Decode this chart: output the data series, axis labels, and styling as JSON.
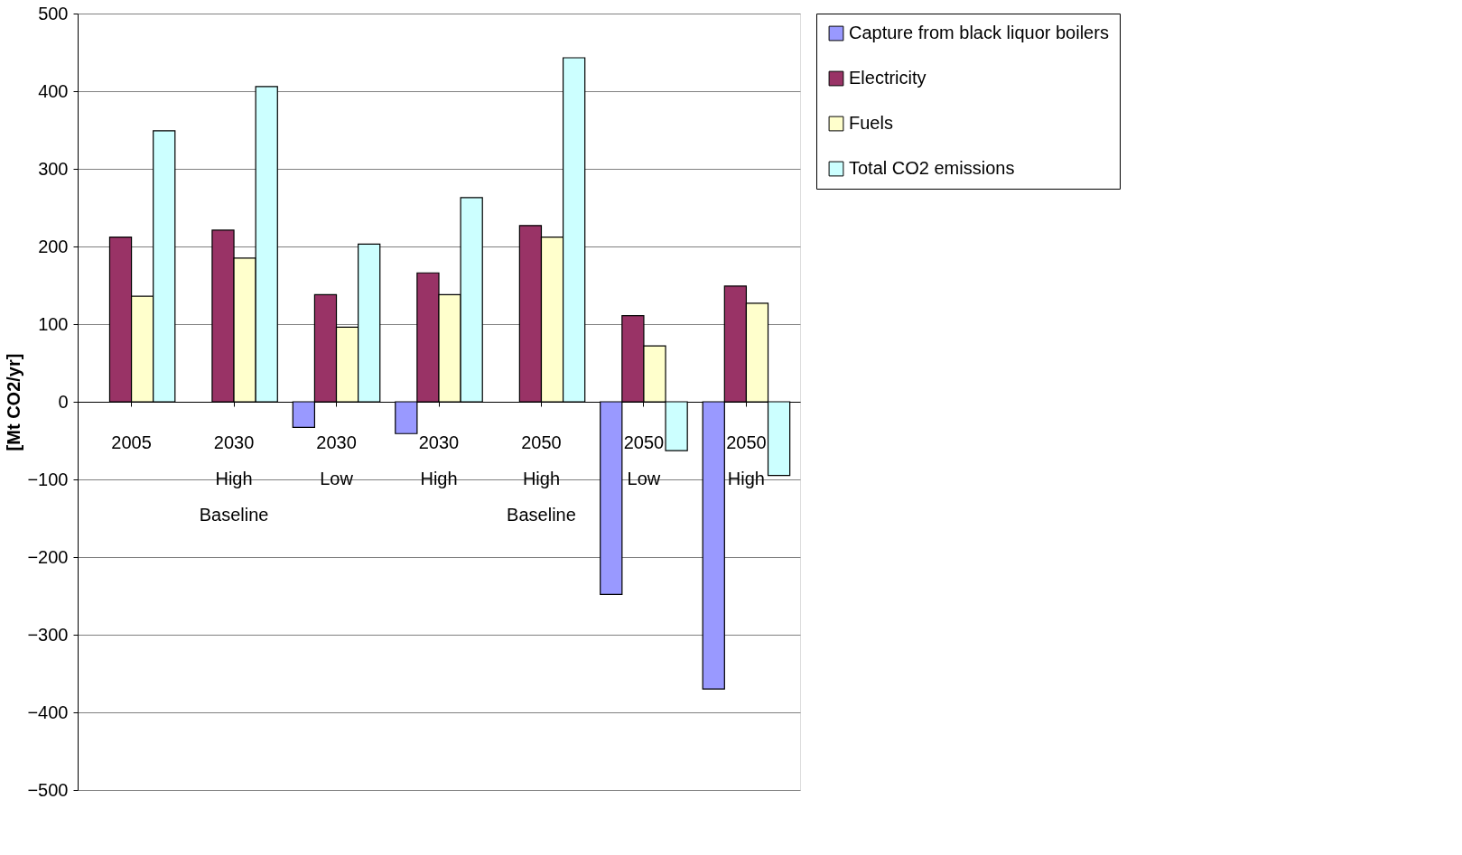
{
  "chart_data": {
    "type": "bar",
    "ylabel": "[Mt CO2/yr]",
    "categories": [
      "2005",
      "2030\nHigh\nBaseline",
      "2030\nLow",
      "2030\nHigh",
      "2050\nHigh\nBaseline",
      "2050\nLow",
      "2050\nHigh"
    ],
    "series": [
      {
        "name": "Capture from black liquor boilers",
        "color": "#9999ff",
        "values": [
          null,
          null,
          -33,
          -41,
          null,
          -248,
          -370
        ]
      },
      {
        "name": "Electricity",
        "color": "#993366",
        "values": [
          212,
          221,
          138,
          166,
          227,
          111,
          149
        ]
      },
      {
        "name": "Fuels",
        "color": "#ffffcc",
        "values": [
          136,
          185,
          96,
          138,
          212,
          72,
          127
        ]
      },
      {
        "name": "Total CO2 emissions",
        "color": "#ccffff",
        "values": [
          349,
          406,
          203,
          263,
          443,
          -63,
          -95
        ]
      }
    ],
    "ylim": [
      -500,
      500
    ],
    "yticks": [
      -500,
      -400,
      -300,
      -200,
      -100,
      0,
      100,
      200,
      300,
      400,
      500
    ],
    "grid": "y",
    "legend": "right"
  }
}
